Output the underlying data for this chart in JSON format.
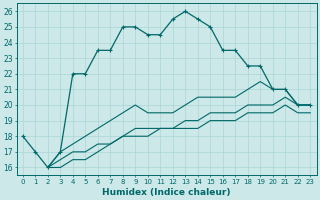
{
  "xlabel": "Humidex (Indice chaleur)",
  "bg_color": "#cce8e8",
  "line_color": "#006868",
  "xlim": [
    -0.5,
    23.5
  ],
  "ylim": [
    15.5,
    26.5
  ],
  "xticks": [
    0,
    1,
    2,
    3,
    4,
    5,
    6,
    7,
    8,
    9,
    10,
    11,
    12,
    13,
    14,
    15,
    16,
    17,
    18,
    19,
    20,
    21,
    22,
    23
  ],
  "yticks": [
    16,
    17,
    18,
    19,
    20,
    21,
    22,
    23,
    24,
    25,
    26
  ],
  "line1_x": [
    0,
    1,
    2,
    3,
    4,
    5,
    6,
    7,
    8,
    9,
    10,
    11,
    12,
    13,
    14,
    15,
    16,
    17,
    18,
    19,
    20,
    21,
    22,
    23
  ],
  "line1_y": [
    18,
    17,
    16,
    17,
    22,
    22,
    23.5,
    23.5,
    25,
    25,
    24.5,
    24.5,
    25.5,
    26,
    25.5,
    25,
    23.5,
    23.5,
    22.5,
    22.5,
    21,
    21,
    20,
    20
  ],
  "line2_x": [
    2,
    3,
    4,
    5,
    6,
    7,
    8,
    9,
    10,
    11,
    12,
    13,
    14,
    15,
    16,
    17,
    18,
    19,
    20,
    21,
    22,
    23
  ],
  "line2_y": [
    16,
    17,
    17.5,
    18,
    18.5,
    19,
    19.5,
    20,
    19.5,
    19.5,
    19.5,
    20,
    20.5,
    20.5,
    20.5,
    20.5,
    21,
    21.5,
    21,
    21,
    20,
    20
  ],
  "line3_x": [
    2,
    3,
    4,
    5,
    6,
    7,
    8,
    9,
    10,
    11,
    12,
    13,
    14,
    15,
    16,
    17,
    18,
    19,
    20,
    21,
    22,
    23
  ],
  "line3_y": [
    16,
    16.5,
    17,
    17,
    17.5,
    17.5,
    18,
    18.5,
    18.5,
    18.5,
    18.5,
    19,
    19,
    19.5,
    19.5,
    19.5,
    20,
    20,
    20,
    20.5,
    20,
    20
  ],
  "line4_x": [
    2,
    3,
    4,
    5,
    6,
    7,
    8,
    9,
    10,
    11,
    12,
    13,
    14,
    15,
    16,
    17,
    18,
    19,
    20,
    21,
    22,
    23
  ],
  "line4_y": [
    16,
    16,
    16.5,
    16.5,
    17,
    17.5,
    18,
    18,
    18,
    18.5,
    18.5,
    18.5,
    18.5,
    19,
    19,
    19,
    19.5,
    19.5,
    19.5,
    20,
    19.5,
    19.5
  ],
  "grid_color": "#aad4d4",
  "marker": "+"
}
